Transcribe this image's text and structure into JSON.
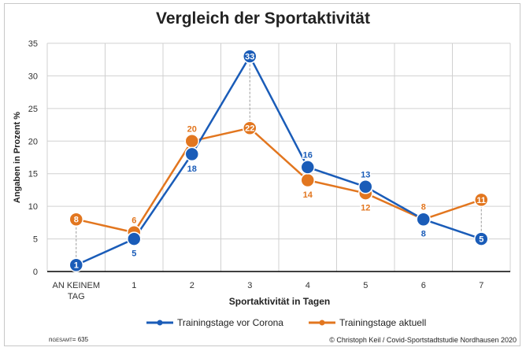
{
  "chart_data": {
    "type": "line",
    "title": "Vergleich der Sportaktivität",
    "xlabel": "Sportaktivität in Tagen",
    "ylabel": "Angaben in Prozent %",
    "ylim": [
      0,
      35
    ],
    "yticks": [
      "0",
      "5",
      "10",
      "15",
      "20",
      "25",
      "30",
      "35"
    ],
    "categories": [
      "AN KEINEM TAG",
      "1",
      "2",
      "3",
      "4",
      "5",
      "6",
      "7"
    ],
    "series": [
      {
        "name": "Trainingstage vor Corona",
        "color": "#1a5cb8",
        "values": [
          1,
          5,
          18,
          33,
          16,
          13,
          8,
          5
        ]
      },
      {
        "name": "Trainingstage aktuell",
        "color": "#e2761f",
        "values": [
          8,
          6,
          20,
          22,
          14,
          12,
          8,
          11
        ]
      }
    ],
    "grid": true,
    "legend": "bottom"
  },
  "footer": {
    "n_prefix": "n",
    "n_sub": "GESAMT",
    "n_value": "= 635",
    "credit": "© Christoph Keil / Covid-Sportstadtstudie Nordhausen 2020"
  }
}
